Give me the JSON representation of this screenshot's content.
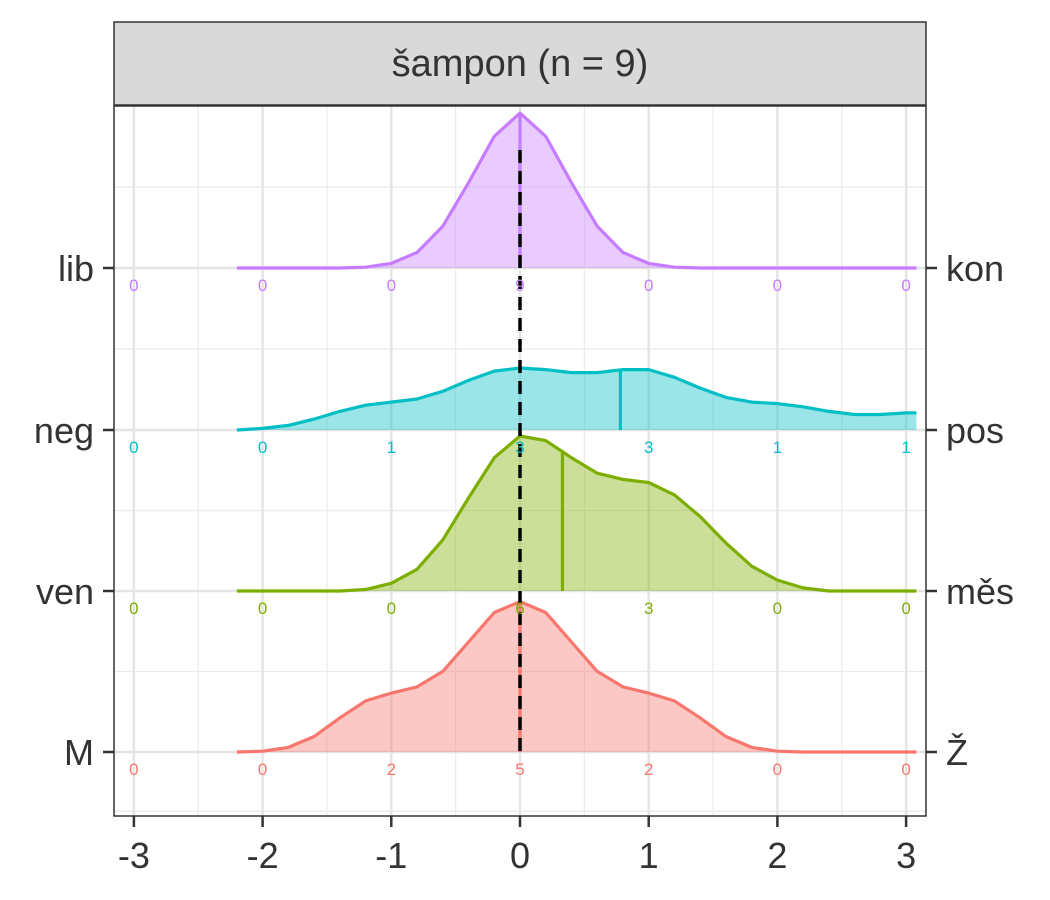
{
  "chart_data": {
    "type": "ridgeline-density",
    "title": "šampon (n = 9)",
    "xlim": [
      -3.15,
      3.15
    ],
    "x_ticks": [
      -3,
      -2,
      -1,
      0,
      1,
      2,
      3
    ],
    "x_tick_labels": [
      "-3",
      "-2",
      "-1",
      "0",
      "1",
      "2",
      "3"
    ],
    "grid": true,
    "reference_line": {
      "x": 0,
      "style": "dashed",
      "color": "#000000"
    },
    "series": [
      {
        "left_label": "M",
        "right_label": "Ž",
        "color": "#F8766D",
        "mean": 0.0,
        "counts": [
          {
            "x": -3,
            "n": "0"
          },
          {
            "x": -2,
            "n": "0"
          },
          {
            "x": -1,
            "n": "2"
          },
          {
            "x": 0,
            "n": "5"
          },
          {
            "x": 1,
            "n": "2"
          },
          {
            "x": 2,
            "n": "0"
          },
          {
            "x": 3,
            "n": "0"
          }
        ],
        "density": [
          [
            -2.2,
            0.0
          ],
          [
            -2.0,
            0.005
          ],
          [
            -1.8,
            0.03
          ],
          [
            -1.6,
            0.1
          ],
          [
            -1.4,
            0.22
          ],
          [
            -1.2,
            0.33
          ],
          [
            -1.0,
            0.38
          ],
          [
            -0.8,
            0.42
          ],
          [
            -0.6,
            0.52
          ],
          [
            -0.4,
            0.71
          ],
          [
            -0.2,
            0.9
          ],
          [
            0.0,
            0.97
          ],
          [
            0.2,
            0.9
          ],
          [
            0.4,
            0.71
          ],
          [
            0.6,
            0.52
          ],
          [
            0.8,
            0.42
          ],
          [
            1.0,
            0.38
          ],
          [
            1.2,
            0.33
          ],
          [
            1.4,
            0.22
          ],
          [
            1.6,
            0.1
          ],
          [
            1.8,
            0.03
          ],
          [
            2.0,
            0.005
          ],
          [
            2.2,
            0.0
          ],
          [
            3.08,
            0.0
          ]
        ]
      },
      {
        "left_label": "ven",
        "right_label": "měs",
        "color": "#7CAE00",
        "mean": 0.33,
        "counts": [
          {
            "x": -3,
            "n": "0"
          },
          {
            "x": -2,
            "n": "0"
          },
          {
            "x": -1,
            "n": "0"
          },
          {
            "x": 0,
            "n": "6"
          },
          {
            "x": 1,
            "n": "3"
          },
          {
            "x": 2,
            "n": "0"
          },
          {
            "x": 3,
            "n": "0"
          }
        ],
        "density": [
          [
            -2.2,
            0.0
          ],
          [
            -1.4,
            0.0
          ],
          [
            -1.2,
            0.01
          ],
          [
            -1.0,
            0.05
          ],
          [
            -0.8,
            0.14
          ],
          [
            -0.6,
            0.33
          ],
          [
            -0.4,
            0.6
          ],
          [
            -0.2,
            0.86
          ],
          [
            0.0,
            1.0
          ],
          [
            0.2,
            0.97
          ],
          [
            0.4,
            0.86
          ],
          [
            0.6,
            0.76
          ],
          [
            0.8,
            0.72
          ],
          [
            1.0,
            0.7
          ],
          [
            1.2,
            0.62
          ],
          [
            1.4,
            0.48
          ],
          [
            1.6,
            0.31
          ],
          [
            1.8,
            0.16
          ],
          [
            2.0,
            0.07
          ],
          [
            2.2,
            0.02
          ],
          [
            2.4,
            0.0
          ],
          [
            3.08,
            0.0
          ]
        ]
      },
      {
        "left_label": "neg",
        "right_label": "pos",
        "color": "#00BFC4",
        "mean": 0.78,
        "counts": [
          {
            "x": -3,
            "n": "0"
          },
          {
            "x": -2,
            "n": "0"
          },
          {
            "x": -1,
            "n": "1"
          },
          {
            "x": 0,
            "n": "3"
          },
          {
            "x": 1,
            "n": "3"
          },
          {
            "x": 2,
            "n": "1"
          },
          {
            "x": 3,
            "n": "1"
          }
        ],
        "density": [
          [
            -2.2,
            0.0
          ],
          [
            -2.0,
            0.01
          ],
          [
            -1.8,
            0.03
          ],
          [
            -1.6,
            0.07
          ],
          [
            -1.4,
            0.12
          ],
          [
            -1.2,
            0.16
          ],
          [
            -1.0,
            0.18
          ],
          [
            -0.8,
            0.2
          ],
          [
            -0.6,
            0.25
          ],
          [
            -0.4,
            0.32
          ],
          [
            -0.2,
            0.38
          ],
          [
            0.0,
            0.4
          ],
          [
            0.2,
            0.39
          ],
          [
            0.4,
            0.37
          ],
          [
            0.6,
            0.37
          ],
          [
            0.8,
            0.39
          ],
          [
            1.0,
            0.39
          ],
          [
            1.2,
            0.34
          ],
          [
            1.4,
            0.27
          ],
          [
            1.6,
            0.21
          ],
          [
            1.8,
            0.18
          ],
          [
            2.0,
            0.17
          ],
          [
            2.2,
            0.15
          ],
          [
            2.4,
            0.12
          ],
          [
            2.6,
            0.1
          ],
          [
            2.8,
            0.1
          ],
          [
            3.0,
            0.11
          ],
          [
            3.08,
            0.11
          ]
        ]
      },
      {
        "left_label": "lib",
        "right_label": "kon",
        "color": "#C77CFF",
        "mean": 0.0,
        "counts": [
          {
            "x": -3,
            "n": "0"
          },
          {
            "x": -2,
            "n": "0"
          },
          {
            "x": -1,
            "n": "0"
          },
          {
            "x": 0,
            "n": "9"
          },
          {
            "x": 1,
            "n": "0"
          },
          {
            "x": 2,
            "n": "0"
          },
          {
            "x": 3,
            "n": "0"
          }
        ],
        "density": [
          [
            -2.2,
            0.0
          ],
          [
            -1.4,
            0.0
          ],
          [
            -1.2,
            0.005
          ],
          [
            -1.0,
            0.03
          ],
          [
            -0.8,
            0.1
          ],
          [
            -0.6,
            0.27
          ],
          [
            -0.4,
            0.55
          ],
          [
            -0.2,
            0.85
          ],
          [
            0.0,
            1.0
          ],
          [
            0.2,
            0.85
          ],
          [
            0.4,
            0.55
          ],
          [
            0.6,
            0.27
          ],
          [
            0.8,
            0.1
          ],
          [
            1.0,
            0.03
          ],
          [
            1.2,
            0.005
          ],
          [
            1.4,
            0.0
          ],
          [
            3.08,
            0.0
          ]
        ]
      }
    ]
  }
}
